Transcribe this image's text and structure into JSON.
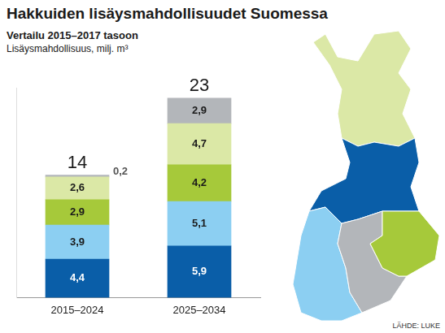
{
  "chart_data": {
    "type": "bar",
    "title": "Hakkuiden lisäysmahdollisuudet Suomessa",
    "subtitle": [
      "Vertailu 2015–2017 tasoon",
      "Lisäysmahdollisuus, milj. m³"
    ],
    "source": "LÄHDE: LUKE",
    "categories": [
      "2015–2024",
      "2025–2034"
    ],
    "stacked": true,
    "data_labels": true,
    "tick_labels": "x",
    "grid": false,
    "ylim": [
      0,
      24
    ],
    "series": [
      {
        "color": "#0a5ea8",
        "values": [
          4.4,
          5.9
        ],
        "value_labels": [
          "4,4",
          "5,9"
        ]
      },
      {
        "color": "#8ccff2",
        "values": [
          3.9,
          5.1
        ],
        "value_labels": [
          "3,9",
          "5,1"
        ]
      },
      {
        "color": "#a6c93a",
        "values": [
          2.9,
          4.2
        ],
        "value_labels": [
          "2,9",
          "4,2"
        ]
      },
      {
        "color": "#dbe8a6",
        "values": [
          2.6,
          4.7
        ],
        "value_labels": [
          "2,6",
          "4,7"
        ]
      },
      {
        "color": "#b3b6ba",
        "values": [
          0.2,
          2.9
        ],
        "value_labels": [
          "0,2",
          "2,9"
        ]
      }
    ],
    "totals": [
      14,
      23
    ]
  }
}
